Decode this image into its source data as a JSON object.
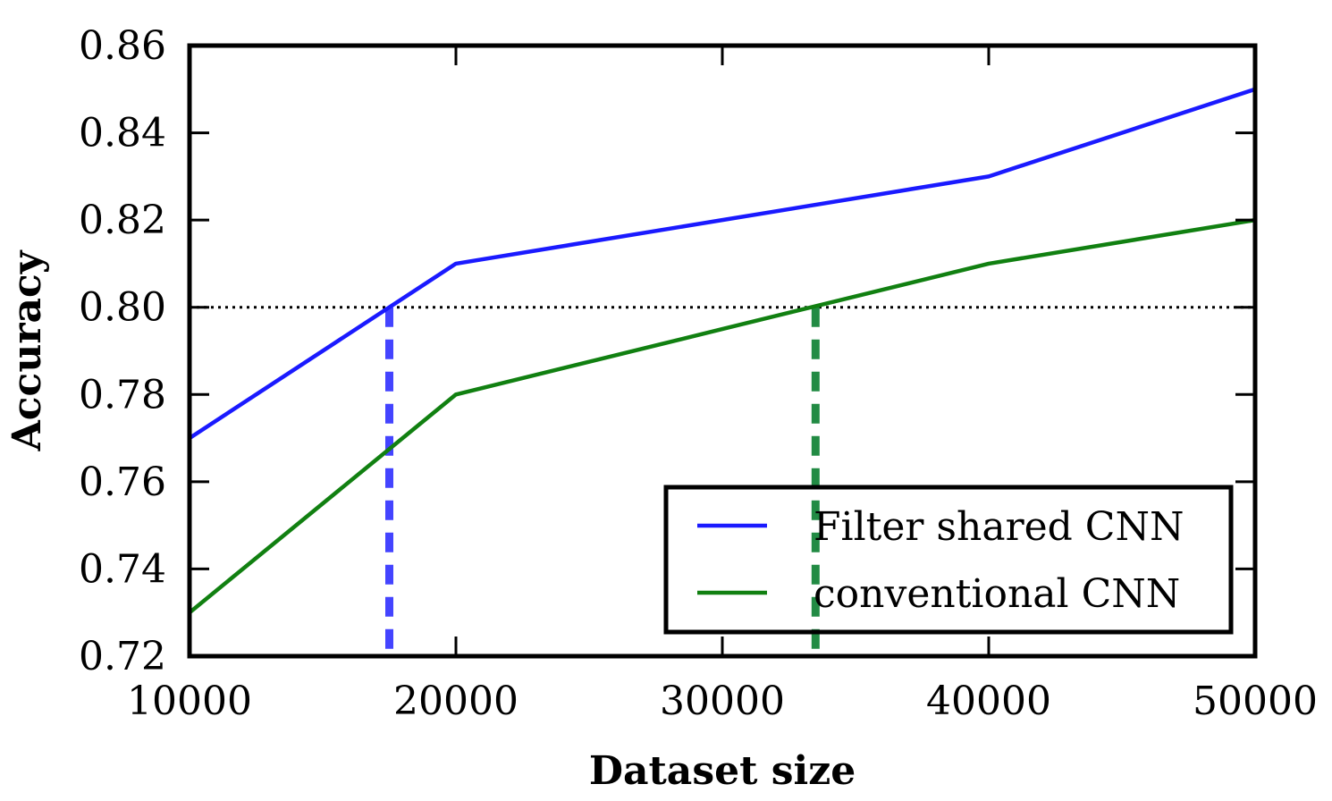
{
  "chart_data": {
    "type": "line",
    "title": "",
    "xlabel": "Dataset size",
    "ylabel": "Accuracy",
    "xlim": [
      10000,
      50000
    ],
    "ylim": [
      0.72,
      0.86
    ],
    "x_ticks": [
      10000,
      20000,
      30000,
      40000,
      50000
    ],
    "x_tick_labels": [
      "10000",
      "20000",
      "30000",
      "40000",
      "50000"
    ],
    "y_ticks": [
      0.72,
      0.74,
      0.76,
      0.78,
      0.8,
      0.82,
      0.84,
      0.86
    ],
    "y_tick_labels": [
      "0.72",
      "0.74",
      "0.76",
      "0.78",
      "0.80",
      "0.82",
      "0.84",
      "0.86"
    ],
    "grid": false,
    "legend_position": "bottom-right",
    "x": [
      10000,
      20000,
      30000,
      40000,
      50000
    ],
    "series": [
      {
        "name": "Filter shared CNN",
        "color": "#1a1aff",
        "values": [
          0.77,
          0.81,
          0.82,
          0.83,
          0.85
        ]
      },
      {
        "name": "conventional CNN",
        "color": "#118011",
        "values": [
          0.73,
          0.78,
          0.795,
          0.81,
          0.82
        ]
      }
    ],
    "reference_lines": {
      "threshold": {
        "y": 0.8,
        "color": "#000000",
        "style": "dotted"
      },
      "crossings": [
        {
          "x": 17500,
          "color": "#4444ff",
          "style": "dashed",
          "series": "Filter shared CNN"
        },
        {
          "x": 33500,
          "color": "#228b44",
          "style": "dashed",
          "series": "conventional CNN"
        }
      ]
    }
  }
}
